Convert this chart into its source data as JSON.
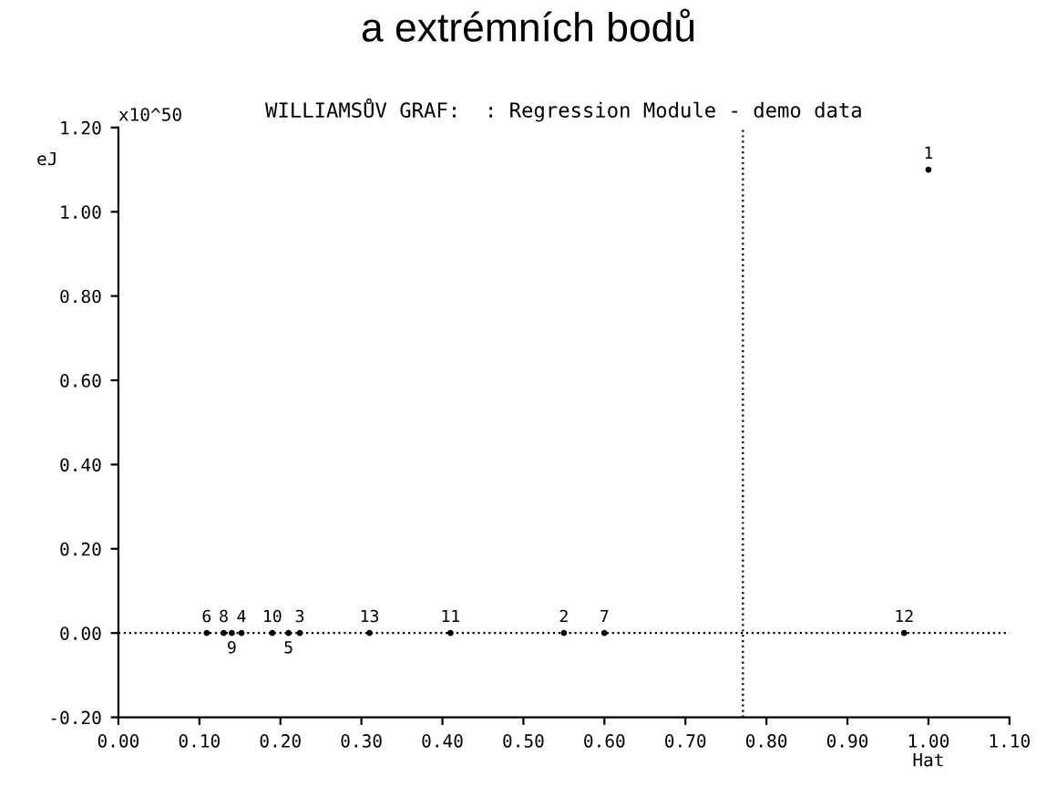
{
  "chart_data": {
    "type": "scatter",
    "title": "WILLIAMSŮV GRAF:  : Regression Module - demo data",
    "xlabel": "Hat",
    "ylabel": "eJ",
    "annotations": [
      "a extrémních bodů",
      "x10^50",
      {
        "text": "1",
        "x": 1.0,
        "y": 1.1
      },
      {
        "text": "2",
        "x": 0.55,
        "y": 0
      },
      {
        "text": "3",
        "x": 0.224,
        "y": 0
      },
      {
        "text": "4",
        "x": 0.152,
        "y": 0
      },
      {
        "text": "5",
        "x": 0.21,
        "y": 0
      },
      {
        "text": "6",
        "x": 0.109,
        "y": 0
      },
      {
        "text": "7",
        "x": 0.6,
        "y": 0
      },
      {
        "text": "8",
        "x": 0.13,
        "y": 0
      },
      {
        "text": "9",
        "x": 0.14,
        "y": 0
      },
      {
        "text": "10",
        "x": 0.19,
        "y": 0
      },
      {
        "text": "11",
        "x": 0.41,
        "y": 0
      },
      {
        "text": "12",
        "x": 0.97,
        "y": 0
      },
      {
        "text": "13",
        "x": 0.31,
        "y": 0
      }
    ],
    "series": [
      {
        "color": "#000000",
        "x": [
          1.0,
          0.55,
          0.224,
          0.152,
          0.21,
          0.109,
          0.6,
          0.13,
          0.14,
          0.19,
          0.41,
          0.97,
          0.31
        ],
        "values": [
          1.1,
          0,
          0,
          0,
          0,
          0,
          0,
          0,
          0,
          0,
          0,
          0,
          0
        ]
      }
    ],
    "xlim": [
      0,
      1.1
    ],
    "xticks": [
      {
        "value": 0,
        "label": "0.00"
      },
      {
        "value": 0.1,
        "label": "0.10"
      },
      {
        "value": 0.2,
        "label": "0.20"
      },
      {
        "value": 0.3,
        "label": "0.30"
      },
      {
        "value": 0.4,
        "label": "0.40"
      },
      {
        "value": 0.5,
        "label": "0.50"
      },
      {
        "value": 0.6,
        "label": "0.60"
      },
      {
        "value": 0.7,
        "label": "0.70"
      },
      {
        "value": 0.8,
        "label": "0.80"
      },
      {
        "value": 0.9,
        "label": "0.90"
      },
      {
        "value": 1.0,
        "label": "1.00"
      },
      {
        "value": 1.1,
        "label": "1.10"
      }
    ],
    "ylim": [
      -0.2,
      1.2
    ],
    "yticks": [
      {
        "value": -0.2,
        "label": "-0.20"
      },
      {
        "value": 0,
        "label": "0.00"
      },
      {
        "value": 0.2,
        "label": "0.20"
      },
      {
        "value": 0.4,
        "label": "0.40"
      },
      {
        "value": 0.6,
        "label": "0.60"
      },
      {
        "value": 0.8,
        "label": "0.80"
      },
      {
        "value": 1.0,
        "label": "1.00"
      },
      {
        "value": 1.2,
        "label": "1.20"
      }
    ],
    "ref_lines": [
      {
        "axis": "x",
        "value": 0.771,
        "line_style": "dotted",
        "color": "#000000"
      },
      {
        "axis": "y",
        "value": 0,
        "line_style": "dotted",
        "color": "#000000"
      }
    ],
    "grid": false,
    "legend": false
  }
}
